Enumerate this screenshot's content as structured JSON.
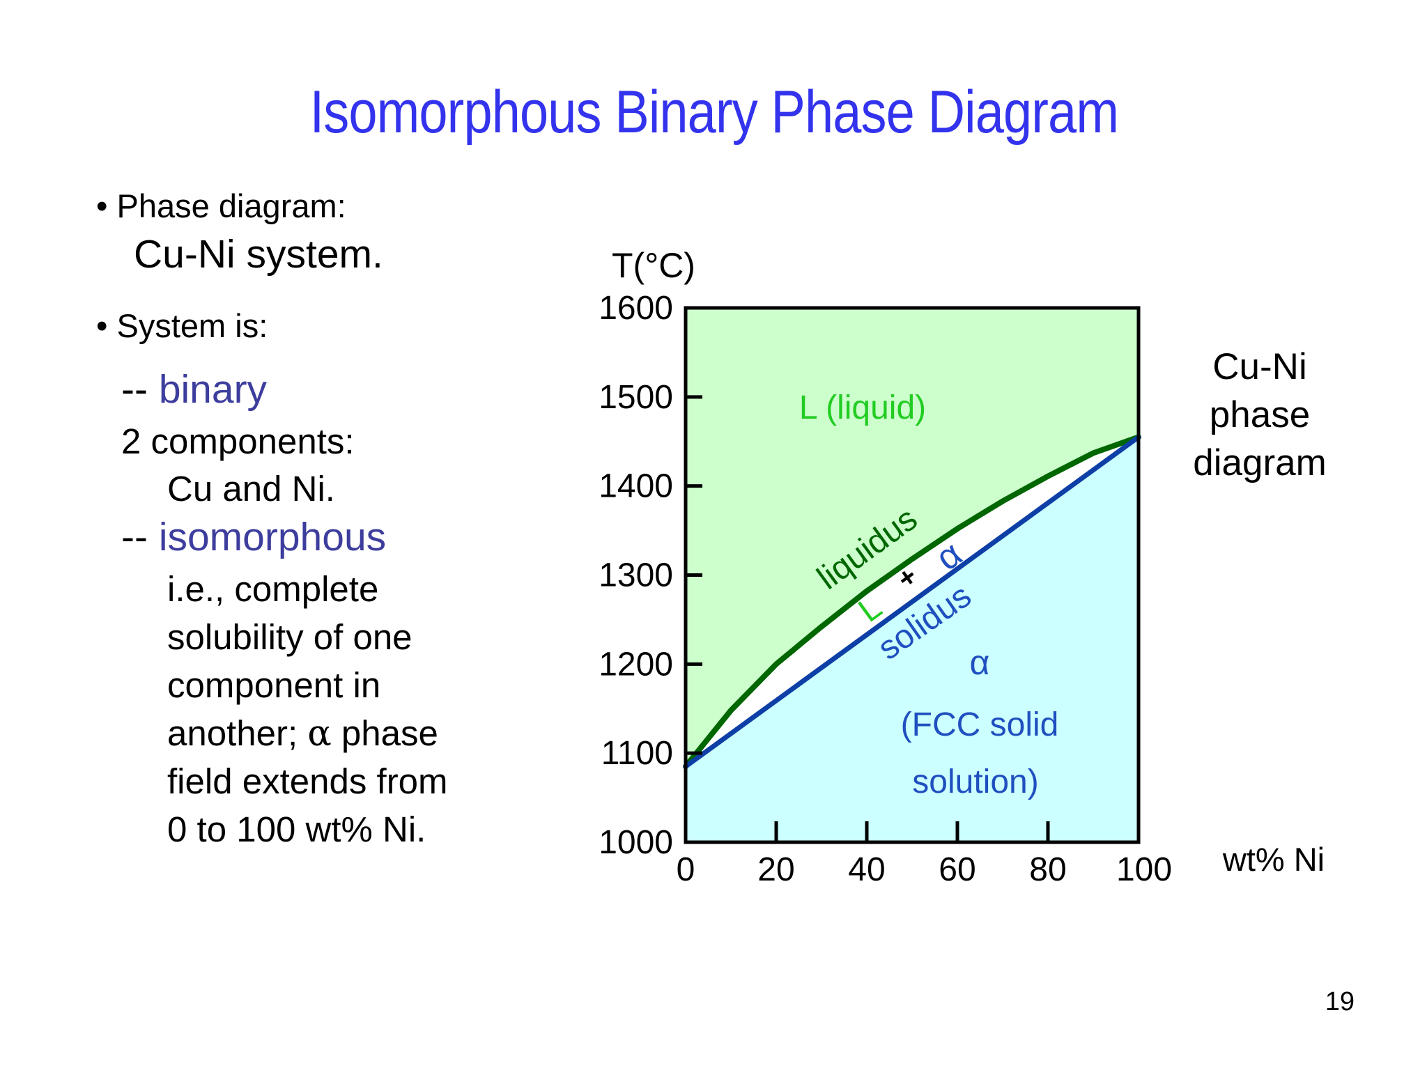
{
  "slide": {
    "title": "Isomorphous Binary Phase Diagram",
    "page_number": "19"
  },
  "left_text": {
    "bullet1": "• Phase diagram:",
    "bullet1_sub": "Cu-Ni system.",
    "bullet2": "• System is:",
    "binary_prefix": "-- ",
    "binary_word": "binary",
    "binary_line2": "2 components:",
    "binary_line3": "Cu and Ni.",
    "iso_prefix": "-- ",
    "iso_word": "isomorphous",
    "iso_lines": [
      "i.e., complete",
      "solubility of one",
      "component in"
    ],
    "iso_line4_a": "another; ",
    "iso_line4_alpha": "α",
    "iso_line4_b": " phase",
    "iso_lines_end": [
      "field extends from",
      "0 to 100 wt% Ni."
    ]
  },
  "diagram": {
    "caption": [
      "Cu-Ni",
      "phase",
      "diagram"
    ],
    "y_axis_label": "T(°C)",
    "x_axis_label": "wt% Ni",
    "region_liquid": "L (liquid)",
    "liquidus_label": "liquidus",
    "solidus_label": "solidus",
    "two_phase_L": "L",
    "two_phase_plus": "+",
    "two_phase_alpha": "α",
    "alpha_symbol": "α",
    "alpha_desc": [
      "(FCC solid",
      "solution)"
    ],
    "colors": {
      "liquid_region": "#ccffcc",
      "solid_region": "#ccffff",
      "liquidus_line": "#006600",
      "solidus_line": "#0d3fa6",
      "liquid_text": "#22cc22",
      "alpha_text": "#1f4fbf"
    }
  },
  "chart_data": {
    "type": "line",
    "title": "",
    "xlabel": "wt% Ni",
    "ylabel": "T(°C)",
    "xlim": [
      0,
      100
    ],
    "ylim": [
      1000,
      1600
    ],
    "x_ticks": [
      "0",
      "20",
      "40",
      "60",
      "80",
      "100"
    ],
    "y_ticks": [
      "1000",
      "1100",
      "1200",
      "1300",
      "1400",
      "1500",
      "1600"
    ],
    "series": [
      {
        "name": "liquidus",
        "x": [
          0,
          10,
          20,
          30,
          40,
          50,
          60,
          70,
          80,
          90,
          100
        ],
        "y": [
          1085,
          1148,
          1200,
          1242,
          1282,
          1318,
          1352,
          1383,
          1411,
          1437,
          1455
        ]
      },
      {
        "name": "solidus",
        "x": [
          0,
          100
        ],
        "y": [
          1085,
          1455
        ]
      }
    ]
  }
}
